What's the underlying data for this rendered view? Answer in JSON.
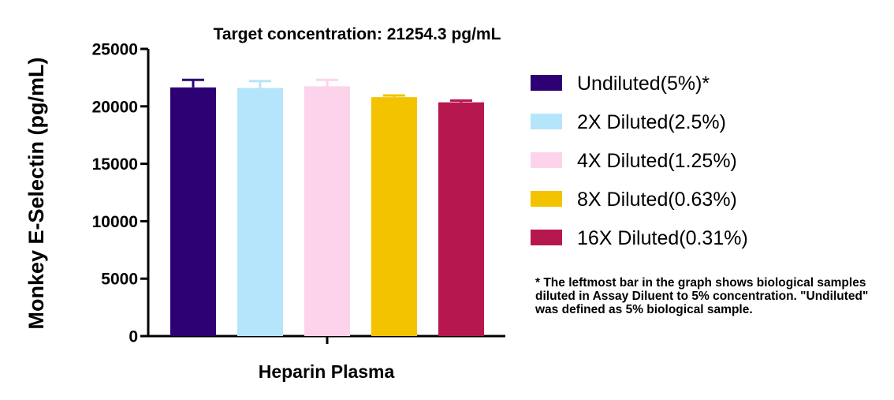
{
  "chart_data": {
    "type": "bar",
    "title": "Target concentration: 21254.3 pg/mL",
    "ylabel": "Monkey E-Selectin (pg/mL)",
    "xlabel": "Heparin Plasma",
    "ylim": [
      0,
      25000
    ],
    "yticks": [
      0,
      5000,
      10000,
      15000,
      20000,
      25000
    ],
    "ytick_labels": [
      "0",
      "5000",
      "10000",
      "15000",
      "20000",
      "25000"
    ],
    "grid": false,
    "legend_position": "right",
    "series": [
      {
        "name": "Undiluted(5%)*",
        "value": 21650,
        "error": 650,
        "color": "#2d0073"
      },
      {
        "name": "2X Diluted(2.5%)",
        "value": 21600,
        "error": 600,
        "color": "#b5e5fa"
      },
      {
        "name": "4X Diluted(1.25%)",
        "value": 21750,
        "error": 550,
        "color": "#fdd3ec"
      },
      {
        "name": "8X Diluted(0.63%)",
        "value": 20800,
        "error": 150,
        "color": "#f3c300"
      },
      {
        "name": "16X Diluted(0.31%)",
        "value": 20350,
        "error": 150,
        "color": "#b7174f"
      }
    ],
    "footnote": "* The leftmost bar in the graph shows biological samples diluted in Assay Diluent to 5% concentration. \"Undiluted\" was defined as 5% biological sample."
  }
}
